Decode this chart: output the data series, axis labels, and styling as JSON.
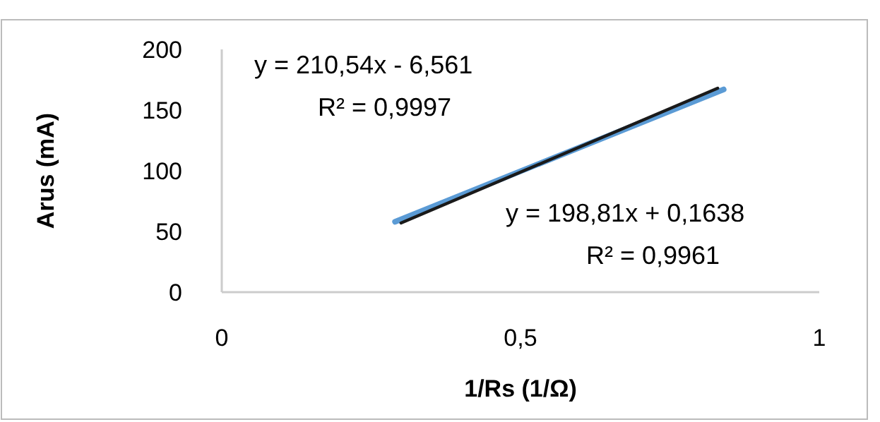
{
  "chart_data": {
    "type": "line",
    "xlabel": "1/Rs (1/Ω)",
    "ylabel": "Arus (mA)",
    "xlim": [
      0,
      1
    ],
    "xticks": [
      0,
      {
        "value": 0.5,
        "label": "0,5"
      },
      1
    ],
    "ylim": [
      0,
      200
    ],
    "yticks": [
      0,
      50,
      100,
      150,
      200
    ],
    "grid": false,
    "marker": "none",
    "line_style": "solid",
    "series": [
      {
        "color": "#5b9bd5",
        "x": [
          0.29,
          0.84
        ],
        "values": [
          58,
          167
        ]
      },
      {
        "color": "#1a1a1a",
        "x": [
          0.3,
          0.83
        ],
        "values": [
          57,
          168
        ]
      }
    ],
    "annotations": [
      "y = 210,54x - 6,561",
      "R² = 0,9997",
      "y = 198,81x + 0,1638",
      "R² = 0,9961"
    ]
  }
}
